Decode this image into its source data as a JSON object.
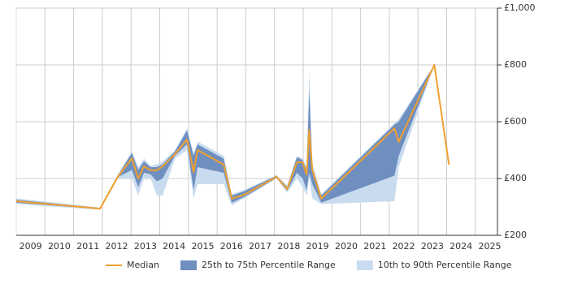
{
  "chart_data": {
    "type": "percentile-band-line",
    "x": [
      2009.0,
      2011.92,
      2012.54,
      2013.03,
      2013.25,
      2013.45,
      2013.68,
      2013.9,
      2014.1,
      2014.53,
      2014.95,
      2015.18,
      2015.32,
      2016.23,
      2016.51,
      2016.94,
      2018.07,
      2018.44,
      2018.78,
      2018.98,
      2019.12,
      2019.21,
      2019.32,
      2019.63,
      2022.18,
      2022.33,
      2023.57,
      2024.08
    ],
    "series": [
      {
        "name": "10th to 90th Percentile Range",
        "color": "#c9dcef",
        "role": "band",
        "lower": [
          310,
          290,
          400,
          400,
          340,
          400,
          400,
          340,
          340,
          470,
          500,
          330,
          380,
          380,
          305,
          330,
          400,
          350,
          400,
          370,
          340,
          400,
          330,
          310,
          320,
          440,
          800,
          null
        ],
        "upper": [
          330,
          298,
          415,
          495,
          440,
          470,
          445,
          450,
          460,
          500,
          575,
          490,
          530,
          480,
          345,
          360,
          412,
          375,
          480,
          470,
          440,
          780,
          450,
          345,
          595,
          610,
          800,
          null
        ]
      },
      {
        "name": "25th to 75th Percentile Range",
        "color": "#6f8fbf",
        "role": "band",
        "lower": [
          315,
          292,
          405,
          430,
          370,
          420,
          415,
          390,
          400,
          480,
          520,
          360,
          440,
          420,
          315,
          335,
          402,
          357,
          420,
          400,
          360,
          420,
          380,
          315,
          410,
          480,
          800,
          null
        ],
        "upper": [
          325,
          296,
          410,
          490,
          430,
          460,
          440,
          440,
          450,
          495,
          570,
          480,
          520,
          470,
          340,
          355,
          410,
          370,
          475,
          465,
          430,
          710,
          440,
          340,
          590,
          600,
          800,
          null
        ]
      },
      {
        "name": "Median",
        "color": "#f0a030",
        "role": "line",
        "values": [
          320,
          294,
          406,
          471,
          400,
          443,
          429,
          429,
          443,
          486,
          537,
          423,
          500,
          449,
          329,
          343,
          406,
          363,
          457,
          457,
          414,
          571,
          429,
          329,
          577,
          529,
          800,
          449
        ]
      }
    ],
    "legend_order": [
      "Median",
      "25th to 75th Percentile Range",
      "10th to 90th Percentile Range"
    ],
    "xlim": [
      2009,
      2025.77
    ],
    "xticks": [
      {
        "value": 2009.5,
        "label": "2009"
      },
      {
        "value": 2010.5,
        "label": "2010"
      },
      {
        "value": 2011.5,
        "label": "2011"
      },
      {
        "value": 2012.5,
        "label": "2012"
      },
      {
        "value": 2013.5,
        "label": "2013"
      },
      {
        "value": 2014.5,
        "label": "2014"
      },
      {
        "value": 2015.5,
        "label": "2015"
      },
      {
        "value": 2016.5,
        "label": "2016"
      },
      {
        "value": 2017.5,
        "label": "2017"
      },
      {
        "value": 2018.5,
        "label": "2018"
      },
      {
        "value": 2019.5,
        "label": "2019"
      },
      {
        "value": 2020.5,
        "label": "2020"
      },
      {
        "value": 2021.5,
        "label": "2021"
      },
      {
        "value": 2022.5,
        "label": "2022"
      },
      {
        "value": 2023.5,
        "label": "2023"
      },
      {
        "value": 2024.5,
        "label": "2024"
      },
      {
        "value": 2025.5,
        "label": "2025"
      }
    ],
    "x_gridlines": [
      2010,
      2011,
      2012,
      2013,
      2014,
      2015,
      2016,
      2017,
      2018,
      2019,
      2020,
      2021,
      2022,
      2023,
      2024,
      2025
    ],
    "ylim": [
      200,
      1000
    ],
    "yticks": [
      {
        "value": 200,
        "label": "£200"
      },
      {
        "value": 400,
        "label": "£400"
      },
      {
        "value": 600,
        "label": "£600"
      },
      {
        "value": 800,
        "label": "£800"
      },
      {
        "value": 1000,
        "label": "£1,000"
      }
    ],
    "grid": true
  }
}
